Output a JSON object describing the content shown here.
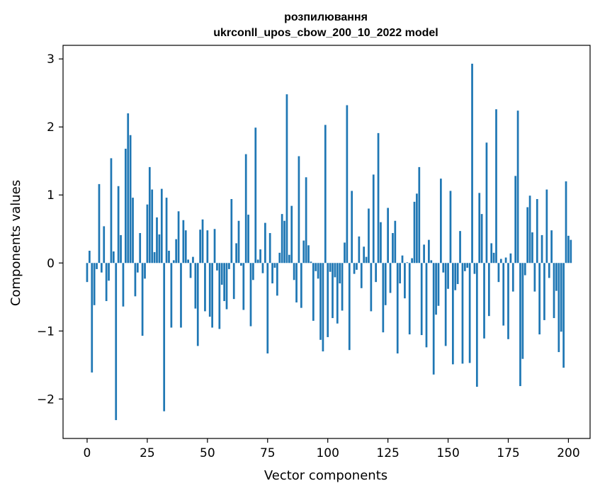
{
  "chart_data": {
    "type": "bar",
    "title": "розпилювання",
    "subtitle": "ukrconll_upos_cbow_200_10_2022 model",
    "xlabel": "Vector components",
    "ylabel": "Components values",
    "xlim": [
      -10,
      209
    ],
    "ylim": [
      -2.58,
      3.2
    ],
    "xticks": [
      0,
      25,
      50,
      75,
      100,
      125,
      150,
      175,
      200
    ],
    "yticks": [
      -2,
      -1,
      0,
      1,
      2,
      3
    ],
    "ytick_labels": [
      "−2",
      "−1",
      "0",
      "1",
      "2",
      "3"
    ],
    "bar_color": "#1f77b4",
    "grid": false,
    "x_start": 0,
    "values": [
      -0.28,
      0.18,
      -1.61,
      -0.62,
      -0.09,
      1.16,
      -0.14,
      0.54,
      -0.56,
      -0.26,
      1.54,
      0.17,
      -2.31,
      1.13,
      0.41,
      -0.64,
      1.68,
      2.2,
      1.88,
      0.96,
      -0.49,
      -0.14,
      0.44,
      -1.07,
      -0.23,
      0.86,
      1.41,
      1.08,
      0.16,
      0.67,
      0.42,
      1.09,
      -2.18,
      0.96,
      0.18,
      -0.95,
      0.04,
      0.35,
      0.76,
      -0.95,
      0.63,
      0.48,
      0.05,
      -0.22,
      0.09,
      -0.67,
      -1.22,
      0.49,
      0.64,
      -0.71,
      0.48,
      -0.79,
      -0.95,
      0.5,
      -0.11,
      -0.97,
      -0.32,
      -0.56,
      -0.68,
      -0.09,
      0.94,
      -0.53,
      0.29,
      0.62,
      -0.04,
      -0.69,
      1.6,
      0.71,
      -0.93,
      -0.25,
      1.99,
      0.05,
      0.2,
      -0.15,
      0.59,
      -1.33,
      0.44,
      -0.3,
      -0.07,
      -0.48,
      0.15,
      0.72,
      0.62,
      2.48,
      0.12,
      0.84,
      -0.25,
      -0.58,
      1.57,
      -0.66,
      0.33,
      1.26,
      0.26,
      0.02,
      -0.85,
      -0.12,
      -0.23,
      -1.13,
      -1.3,
      2.03,
      -1.09,
      -0.13,
      -0.81,
      -0.21,
      -0.89,
      -0.3,
      -0.7,
      0.3,
      2.32,
      -1.28,
      1.06,
      -0.16,
      -0.1,
      0.39,
      -0.37,
      0.24,
      0.09,
      0.8,
      -0.71,
      1.3,
      -0.28,
      1.91,
      0.6,
      -1.02,
      -0.62,
      0.81,
      -0.44,
      0.44,
      0.62,
      -1.33,
      -0.3,
      0.11,
      -0.52,
      0.01,
      -1.05,
      0.07,
      0.9,
      1.02,
      1.41,
      -1.06,
      0.27,
      -1.24,
      0.34,
      0.04,
      -1.64,
      -0.76,
      -0.63,
      1.24,
      -0.14,
      -1.22,
      -0.38,
      1.06,
      -1.49,
      -0.4,
      -0.31,
      0.47,
      -1.48,
      -0.12,
      -0.07,
      -1.47,
      2.93,
      -0.16,
      -1.82,
      1.03,
      0.72,
      -1.11,
      1.77,
      -0.78,
      0.29,
      0.15,
      2.26,
      -0.28,
      0.06,
      -0.92,
      0.08,
      -1.12,
      0.14,
      -0.42,
      1.28,
      2.24,
      -1.81,
      -1.41,
      -0.18,
      0.82,
      0.99,
      0.45,
      -0.42,
      0.94,
      -1.05,
      0.41,
      -0.84,
      1.08,
      -0.22,
      0.48,
      -0.81,
      -0.41,
      -1.31,
      -1.01,
      -1.54,
      1.2,
      0.4,
      0.34
    ]
  }
}
